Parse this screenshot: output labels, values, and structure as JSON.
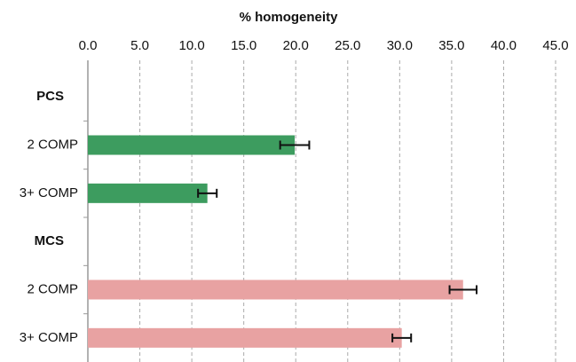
{
  "chart_data": {
    "type": "barh",
    "title": "% homogeneity",
    "categories": [
      "PCS",
      "2 COMP",
      "3+ COMP",
      "MCS",
      "2 COMP",
      "3+ COMP"
    ],
    "values": [
      null,
      19.9,
      11.5,
      null,
      36.1,
      30.2
    ],
    "errors": [
      null,
      1.4,
      0.9,
      null,
      1.3,
      0.9
    ],
    "colors": [
      null,
      "#3d9c5f",
      "#3d9c5f",
      null,
      "#e8a2a2",
      "#e8a2a2"
    ],
    "xlim": [
      0,
      45
    ],
    "xticks": [
      {
        "value": 0,
        "label": "0.0"
      },
      {
        "value": 5,
        "label": "5.0"
      },
      {
        "value": 10,
        "label": "10.0"
      },
      {
        "value": 15,
        "label": "15.0"
      },
      {
        "value": 20,
        "label": "20.0"
      },
      {
        "value": 25,
        "label": "25.0"
      },
      {
        "value": 30,
        "label": "30.0"
      },
      {
        "value": 35,
        "label": "35.0"
      },
      {
        "value": 40,
        "label": "40.0"
      },
      {
        "value": 45,
        "label": "45.0"
      }
    ],
    "grid": true
  }
}
